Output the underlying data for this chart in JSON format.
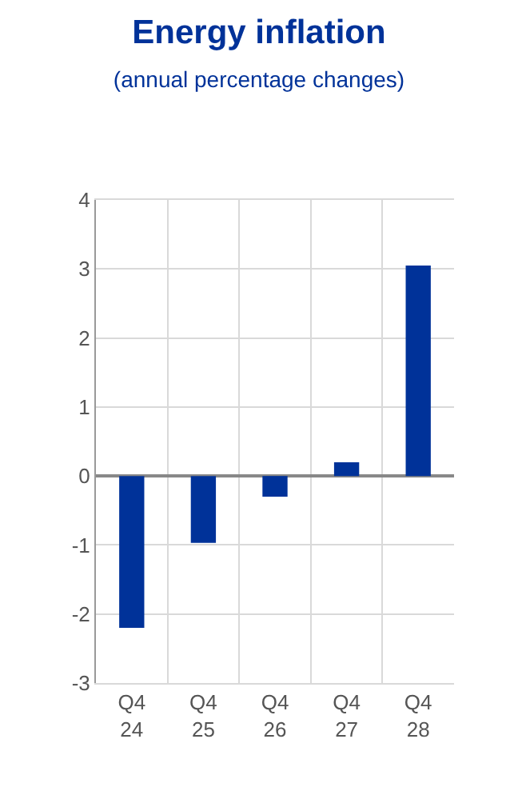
{
  "chart_data": {
    "type": "bar",
    "title": "Energy inflation",
    "subtitle": "(annual percentage changes)",
    "categories": [
      "Q4\n24",
      "Q4\n25",
      "Q4\n26",
      "Q4\n27",
      "Q4\n28"
    ],
    "values": [
      -2.2,
      -0.97,
      -0.3,
      0.2,
      3.05
    ],
    "color": "#003299",
    "ylim": [
      -3,
      4
    ],
    "yticks": [
      -3,
      -2,
      -1,
      0,
      1,
      2,
      3,
      4
    ],
    "grid": true
  }
}
